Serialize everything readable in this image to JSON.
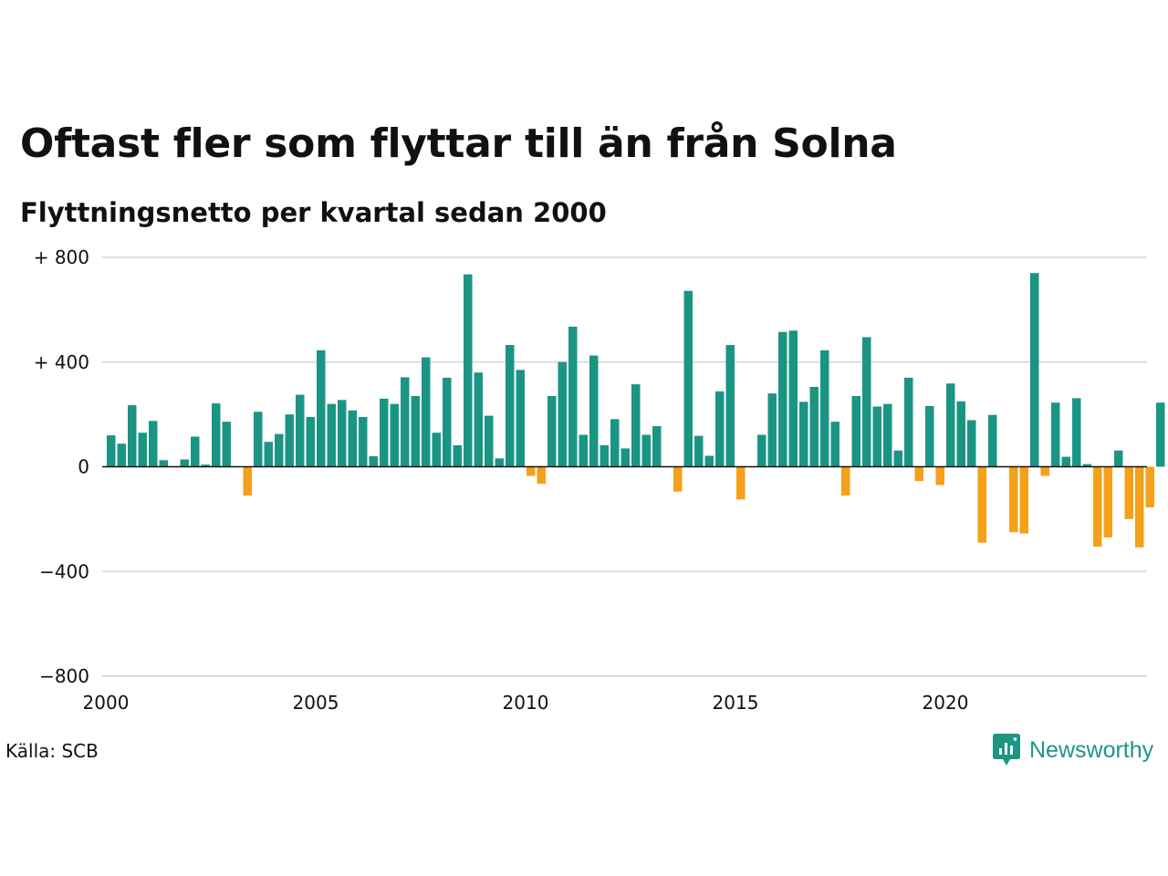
{
  "title": "Oftast fler som flyttar till än från Solna",
  "subtitle": "Flyttningsnetto per kvartal sedan 2000",
  "source": "Källa: SCB",
  "logo": {
    "text": "Newsworthy",
    "icon": "newsworthy-chart-bubble-icon"
  },
  "colors": {
    "positive": "#1a9584",
    "negative": "#f5a01a",
    "grid": "#dddddd",
    "zero": "#111111"
  },
  "chart_data": {
    "type": "bar",
    "x_start": 2000,
    "period": "quarter",
    "ylim": [
      -800,
      800
    ],
    "y_ticks": [
      {
        "value": 800,
        "label": "+ 800"
      },
      {
        "value": 400,
        "label": "+ 400"
      },
      {
        "value": 0,
        "label": "0"
      },
      {
        "value": -400,
        "label": "−400"
      },
      {
        "value": -800,
        "label": "−800"
      }
    ],
    "x_ticks": [
      {
        "value": 2000,
        "label": "2000"
      },
      {
        "value": 2005,
        "label": "2005"
      },
      {
        "value": 2010,
        "label": "2010"
      },
      {
        "value": 2015,
        "label": "2015"
      },
      {
        "value": 2020,
        "label": "2020"
      }
    ],
    "xlabel": "",
    "ylabel": "",
    "grid": true,
    "values": [
      120,
      88,
      235,
      130,
      175,
      25,
      0,
      28,
      115,
      8,
      242,
      172,
      0,
      -110,
      210,
      95,
      125,
      200,
      275,
      190,
      445,
      240,
      255,
      215,
      190,
      40,
      260,
      240,
      342,
      270,
      418,
      130,
      340,
      82,
      735,
      360,
      195,
      32,
      465,
      370,
      -35,
      -65,
      270,
      400,
      535,
      122,
      425,
      82,
      182,
      70,
      315,
      122,
      155,
      0,
      -95,
      672,
      118,
      42,
      288,
      465,
      -125,
      0,
      122,
      280,
      515,
      520,
      248,
      305,
      445,
      172,
      -110,
      270,
      495,
      230,
      240,
      62,
      340,
      -55,
      232,
      -70,
      318,
      250,
      178,
      -290,
      198,
      0,
      -250,
      -255,
      740,
      -35,
      245,
      38,
      262,
      10,
      -305,
      -270,
      62,
      -200,
      -308,
      -155,
      245
    ]
  }
}
